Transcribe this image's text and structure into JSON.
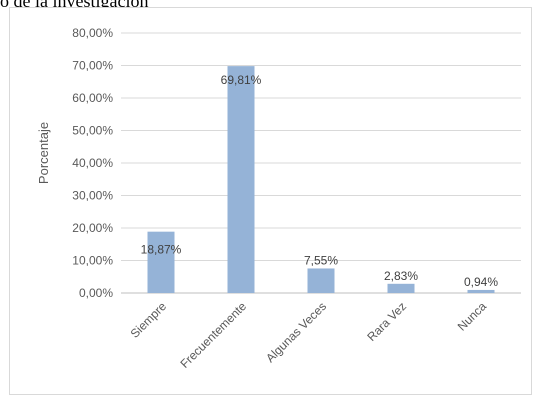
{
  "header": {
    "text": "o de la investigación"
  },
  "chart_data": {
    "type": "bar",
    "categories": [
      "Siempre",
      "Frecuentemente",
      "Algunas Veces",
      "Rara Vez",
      "Nunca"
    ],
    "values": [
      18.87,
      69.81,
      7.55,
      2.83,
      0.94
    ],
    "data_labels": [
      "18,87%",
      "69,81%",
      "7,55%",
      "2,83%",
      "0,94%"
    ],
    "ylabel": "Porcentaje",
    "xlabel": "",
    "ylim": [
      0,
      80
    ],
    "yticks": [
      0,
      10,
      20,
      30,
      40,
      50,
      60,
      70,
      80
    ],
    "ytick_labels": [
      "0,00%",
      "10,00%",
      "20,00%",
      "30,00%",
      "40,00%",
      "50,00%",
      "60,00%",
      "70,00%",
      "80,00%"
    ],
    "grid": true,
    "legend": "none",
    "bar_color": "#95b3d7",
    "grid_color": "#d9d9d9"
  }
}
